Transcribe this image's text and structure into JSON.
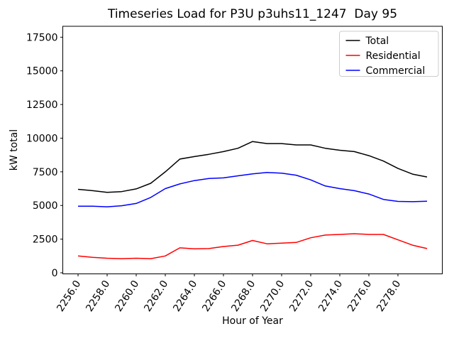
{
  "chart_data": {
    "type": "line",
    "title": "Timeseries Load for P3U p3uhs11_1247  Day 95",
    "xlabel": "Hour of Year",
    "ylabel": "kW total",
    "x": [
      2256,
      2257,
      2258,
      2259,
      2260,
      2261,
      2262,
      2263,
      2264,
      2265,
      2266,
      2267,
      2268,
      2269,
      2270,
      2271,
      2272,
      2273,
      2274,
      2275,
      2276,
      2277,
      2278,
      2279,
      2280
    ],
    "series": [
      {
        "name": "Total",
        "color": "#000000",
        "values": [
          6200,
          6100,
          5980,
          6030,
          6230,
          6650,
          7500,
          8450,
          8630,
          8800,
          9000,
          9250,
          9750,
          9600,
          9600,
          9500,
          9500,
          9250,
          9100,
          9000,
          8700,
          8300,
          7750,
          7330,
          7120
        ]
      },
      {
        "name": "Residential",
        "color": "#ff0000",
        "values": [
          1250,
          1150,
          1080,
          1050,
          1080,
          1050,
          1250,
          1850,
          1780,
          1800,
          1950,
          2050,
          2400,
          2150,
          2200,
          2250,
          2600,
          2800,
          2850,
          2900,
          2850,
          2850,
          2450,
          2050,
          1800
        ]
      },
      {
        "name": "Commercial",
        "color": "#0000ff",
        "values": [
          4950,
          4950,
          4900,
          4980,
          5150,
          5600,
          6250,
          6600,
          6850,
          7000,
          7050,
          7200,
          7350,
          7450,
          7400,
          7250,
          6900,
          6450,
          6250,
          6100,
          5850,
          5450,
          5300,
          5280,
          5320
        ]
      }
    ],
    "xlim": [
      2254.95,
      2281.05
    ],
    "ylim": [
      -80,
      18310
    ],
    "xticks": [
      2256,
      2258,
      2260,
      2262,
      2264,
      2266,
      2268,
      2270,
      2272,
      2274,
      2276,
      2278
    ],
    "xtick_labels": [
      "2256.0",
      "2258.0",
      "2260.0",
      "2262.0",
      "2264.0",
      "2266.0",
      "2268.0",
      "2270.0",
      "2272.0",
      "2274.0",
      "2276.0",
      "2278.0"
    ],
    "yticks": [
      0,
      2500,
      5000,
      7500,
      10000,
      12500,
      15000,
      17500
    ],
    "ytick_labels": [
      "0",
      "2500",
      "5000",
      "7500",
      "10000",
      "12500",
      "15000",
      "17500"
    ],
    "grid": false,
    "legend": {
      "position": "upper right",
      "entries": [
        "Total",
        "Residential",
        "Commercial"
      ]
    },
    "line_width": 1.5,
    "axes_color": "#000000",
    "legend_border_color": "#cccccc",
    "background_color": "#ffffff"
  }
}
